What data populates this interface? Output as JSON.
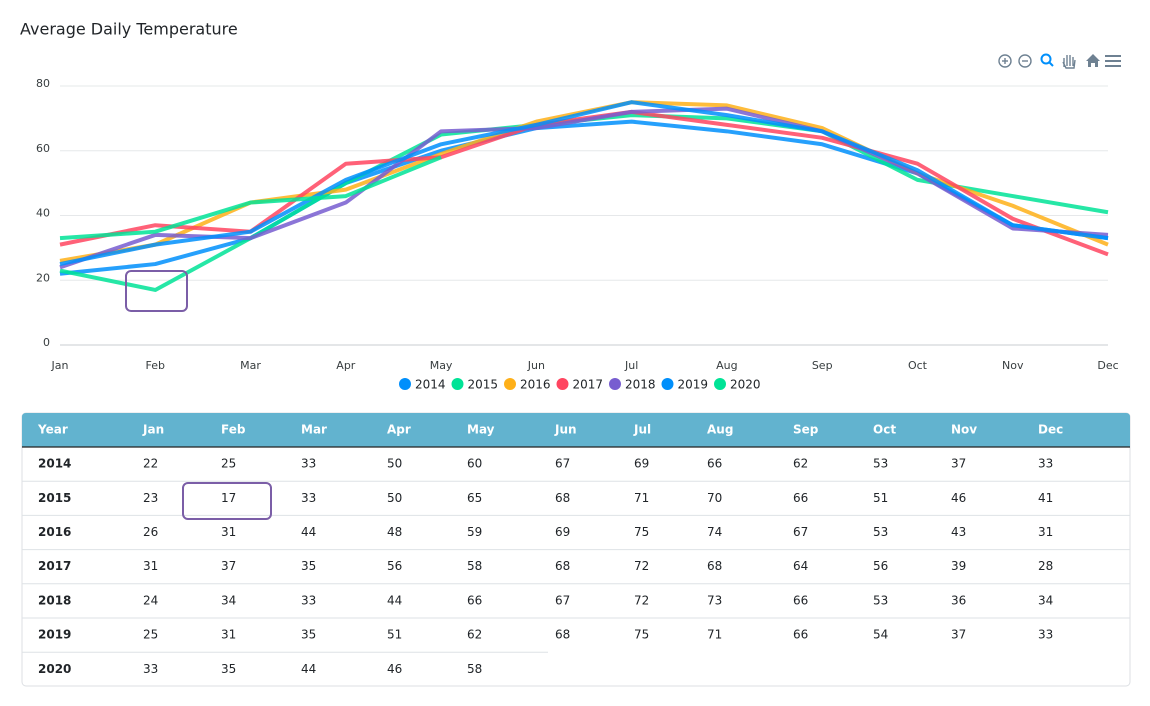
{
  "chart_data": {
    "type": "line",
    "title": "Average Daily Temperature",
    "categories": [
      "Jan",
      "Feb",
      "Mar",
      "Apr",
      "May",
      "Jun",
      "Jul",
      "Aug",
      "Sep",
      "Oct",
      "Nov",
      "Dec"
    ],
    "ylim": [
      0,
      80
    ],
    "yticks": [
      0,
      20,
      40,
      60,
      80
    ],
    "grid": true,
    "legend": "bottom",
    "series": [
      {
        "name": "2014",
        "color": "#008FFB",
        "values": [
          22,
          25,
          33,
          50,
          60,
          67,
          69,
          66,
          62,
          53,
          37,
          33
        ]
      },
      {
        "name": "2015",
        "color": "#00E396",
        "values": [
          23,
          17,
          33,
          50,
          65,
          68,
          71,
          70,
          66,
          51,
          46,
          41
        ]
      },
      {
        "name": "2016",
        "color": "#FEB019",
        "values": [
          26,
          31,
          44,
          48,
          59,
          69,
          75,
          74,
          67,
          53,
          43,
          31
        ]
      },
      {
        "name": "2017",
        "color": "#FF4560",
        "values": [
          31,
          37,
          35,
          56,
          58,
          68,
          72,
          68,
          64,
          56,
          39,
          28
        ]
      },
      {
        "name": "2018",
        "color": "#775DD0",
        "values": [
          24,
          34,
          33,
          44,
          66,
          67,
          72,
          73,
          66,
          53,
          36,
          34
        ]
      },
      {
        "name": "2019",
        "color": "#008FFB",
        "values": [
          25,
          31,
          35,
          51,
          62,
          68,
          75,
          71,
          66,
          54,
          37,
          33
        ]
      },
      {
        "name": "2020",
        "color": "#00E396",
        "values": [
          33,
          35,
          44,
          46,
          58,
          null,
          null,
          null,
          null,
          null,
          null,
          null
        ]
      }
    ]
  },
  "table": {
    "first_header": "Year"
  }
}
